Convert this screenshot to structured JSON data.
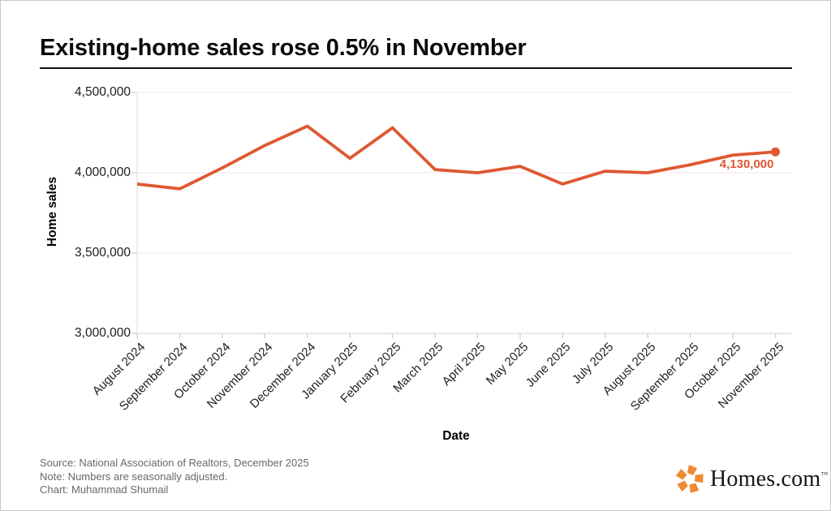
{
  "header": {
    "title": "Existing-home sales rose 0.5% in November"
  },
  "chart_data": {
    "type": "line",
    "title": "Existing-home sales rose 0.5% in November",
    "xlabel": "Date",
    "ylabel": "Home sales",
    "categories": [
      "August 2024",
      "September 2024",
      "October 2024",
      "November 2024",
      "December 2024",
      "January 2025",
      "February 2025",
      "March 2025",
      "April 2025",
      "May 2025",
      "June 2025",
      "July 2025",
      "August 2025",
      "September 2025",
      "October 2025",
      "November 2025"
    ],
    "series": [
      {
        "name": "Home sales",
        "values": [
          3930000,
          3900000,
          4030000,
          4170000,
          4290000,
          4090000,
          4280000,
          4020000,
          4000000,
          4040000,
          3930000,
          4010000,
          4000000,
          4050000,
          4110000,
          4130000
        ]
      }
    ],
    "ylim": [
      3000000,
      4500000
    ],
    "yticks": [
      {
        "label": "4,500,000",
        "value": 4500000
      },
      {
        "label": "4,000,000",
        "value": 4000000
      },
      {
        "label": "3,500,000",
        "value": 3500000
      },
      {
        "label": "3,000,000",
        "value": 3000000
      }
    ],
    "grid": "horizontal",
    "legend": "none",
    "end_point_label": "4,130,000",
    "line_color": "#de5830"
  },
  "footer": {
    "source": "Source: National Association of Realtors, December 2025",
    "note": "Note: Numbers are seasonally adjusted.",
    "credit": "Chart: Muhammad Shumail"
  },
  "logo": {
    "text": "Homes.com",
    "trademark": "™",
    "icon": "homes-pinwheel-icon",
    "orange": "#ef8a35"
  }
}
